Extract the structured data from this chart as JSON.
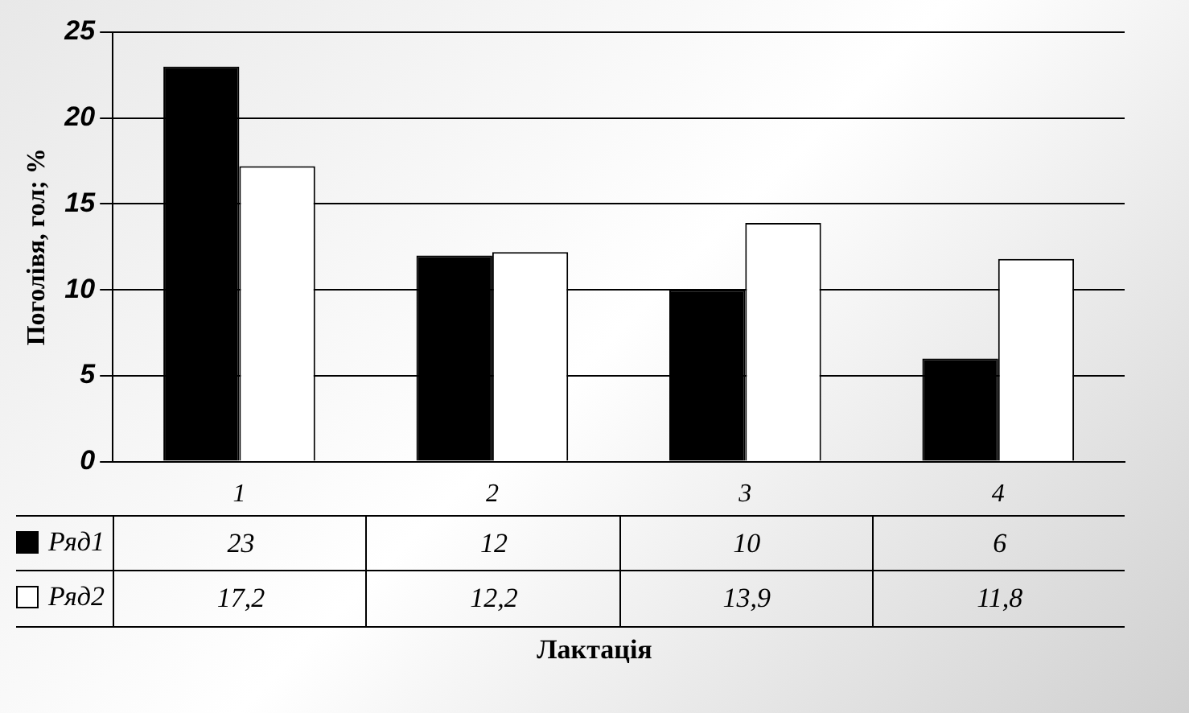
{
  "chart_data": {
    "type": "bar",
    "xlabel": "Лактація",
    "ylabel": "Поголівя, гол; %",
    "categories": [
      "1",
      "2",
      "3",
      "4"
    ],
    "series": [
      {
        "name": "Ряд1",
        "color": "#000000",
        "values": [
          23,
          12,
          10,
          6
        ],
        "value_labels": [
          "23",
          "12",
          "10",
          "6"
        ]
      },
      {
        "name": "Ряд2",
        "color": "#ffffff",
        "values": [
          17.2,
          12.2,
          13.9,
          11.8
        ],
        "value_labels": [
          "17,2",
          "12,2",
          "13,9",
          "11,8"
        ]
      }
    ],
    "ylim": [
      0,
      25
    ],
    "yticks": [
      0,
      5,
      10,
      15,
      20,
      25
    ],
    "grid": "y",
    "legend": "bottom"
  }
}
